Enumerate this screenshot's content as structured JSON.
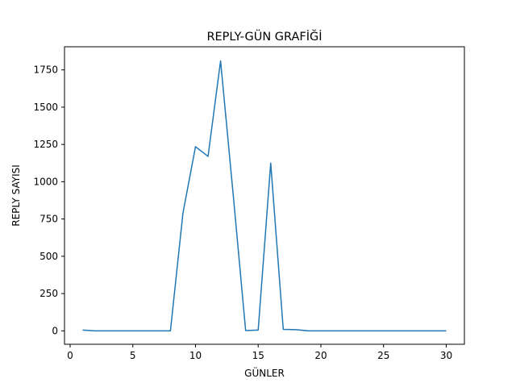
{
  "chart_data": {
    "type": "line",
    "title": "REPLY-GÜN GRAFİĞİ",
    "xlabel": "GÜNLER",
    "ylabel": "REPLY SAYISI",
    "xlim": [
      -0.45,
      31.45
    ],
    "ylim": [
      -90,
      1905
    ],
    "xticks": [
      0,
      5,
      10,
      15,
      20,
      25,
      30
    ],
    "yticks": [
      0,
      250,
      500,
      750,
      1000,
      1250,
      1500,
      1750
    ],
    "grid": false,
    "line_color": "#1f77b4",
    "series": [
      {
        "x": [
          1,
          2,
          3,
          4,
          5,
          6,
          7,
          8,
          9,
          10,
          11,
          12,
          13,
          14,
          15,
          16,
          17,
          18,
          19,
          20,
          21,
          22,
          23,
          24,
          25,
          26,
          27,
          28,
          29,
          30
        ],
        "values": [
          5,
          0,
          0,
          0,
          0,
          0,
          0,
          0,
          790,
          1235,
          1170,
          1810,
          920,
          2,
          5,
          1125,
          10,
          8,
          0,
          0,
          0,
          0,
          0,
          0,
          0,
          0,
          0,
          0,
          0,
          0
        ]
      }
    ]
  }
}
